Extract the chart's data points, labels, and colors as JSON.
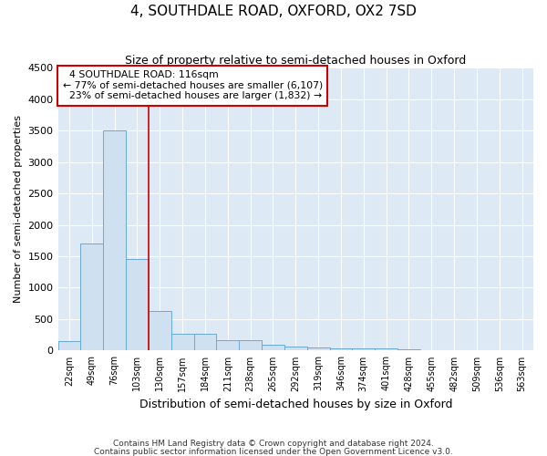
{
  "title": "4, SOUTHDALE ROAD, OXFORD, OX2 7SD",
  "subtitle": "Size of property relative to semi-detached houses in Oxford",
  "xlabel": "Distribution of semi-detached houses by size in Oxford",
  "ylabel": "Number of semi-detached properties",
  "categories": [
    "22sqm",
    "49sqm",
    "76sqm",
    "103sqm",
    "130sqm",
    "157sqm",
    "184sqm",
    "211sqm",
    "238sqm",
    "265sqm",
    "292sqm",
    "319sqm",
    "346sqm",
    "374sqm",
    "401sqm",
    "428sqm",
    "455sqm",
    "482sqm",
    "509sqm",
    "536sqm",
    "563sqm"
  ],
  "values": [
    150,
    1700,
    3500,
    1450,
    630,
    270,
    270,
    160,
    160,
    90,
    60,
    50,
    40,
    40,
    40,
    15,
    5,
    5,
    5,
    5,
    5
  ],
  "bar_color": "#cfe0f0",
  "bar_edge_color": "#6aaad4",
  "background_color": "#ddeaf6",
  "grid_color": "#ffffff",
  "property_line_x": 3.5,
  "property_label": "4 SOUTHDALE ROAD: 116sqm",
  "pct_smaller": 77,
  "pct_larger": 23,
  "count_smaller": 6107,
  "count_larger": 1832,
  "annotation_box_color": "#ffffff",
  "annotation_box_edge": "#cc0000",
  "vline_color": "#cc0000",
  "ylim": [
    0,
    4500
  ],
  "yticks": [
    0,
    500,
    1000,
    1500,
    2000,
    2500,
    3000,
    3500,
    4000,
    4500
  ],
  "footnote1": "Contains HM Land Registry data © Crown copyright and database right 2024.",
  "footnote2": "Contains public sector information licensed under the Open Government Licence v3.0."
}
